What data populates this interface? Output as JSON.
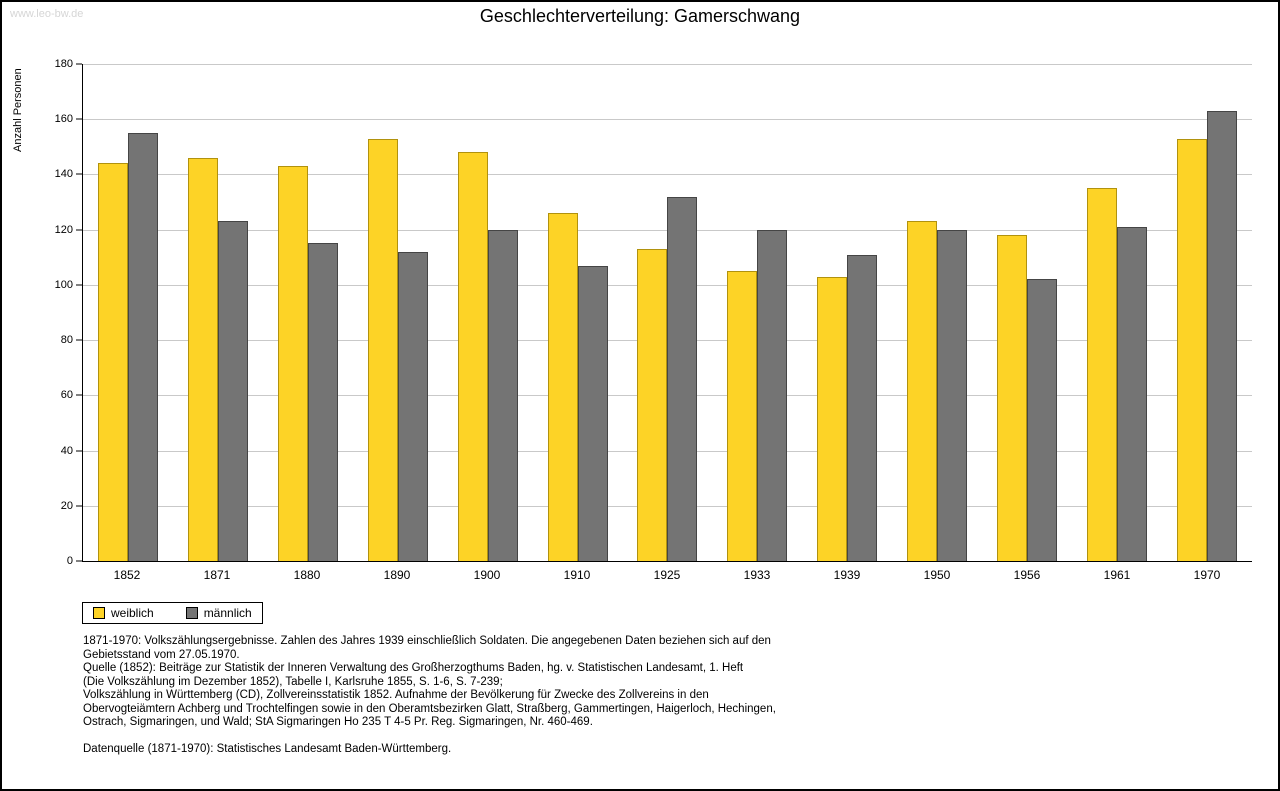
{
  "watermark": "www.leo-bw.de",
  "chart_data": {
    "type": "bar",
    "title": "Geschlechterverteilung: Gamerschwang",
    "xlabel": "",
    "ylabel": "Anzahl Personen",
    "ylim": [
      0,
      180
    ],
    "ytick_step": 20,
    "grid": true,
    "legend_position": "bottom-left",
    "categories": [
      "1852",
      "1871",
      "1880",
      "1890",
      "1900",
      "1910",
      "1925",
      "1933",
      "1939",
      "1950",
      "1956",
      "1961",
      "1970"
    ],
    "series": [
      {
        "name": "weiblich",
        "color": "#fdd326",
        "border": "#b1920e",
        "values": [
          144,
          146,
          143,
          153,
          148,
          126,
          113,
          105,
          103,
          123,
          118,
          135,
          153
        ]
      },
      {
        "name": "männlich",
        "color": "#747474",
        "border": "#454545",
        "values": [
          155,
          123,
          115,
          112,
          120,
          107,
          132,
          120,
          111,
          120,
          102,
          121,
          163
        ]
      }
    ]
  },
  "footnotes": [
    "1871-1970: Volkszählungsergebnisse. Zahlen des Jahres 1939 einschließlich Soldaten. Die angegebenen Daten beziehen sich auf den",
    "Gebietsstand vom 27.05.1970.",
    "Quelle (1852): Beiträge zur Statistik der Inneren Verwaltung des Großherzogthums Baden, hg. v. Statistischen Landesamt, 1. Heft",
    "(Die Volkszählung im Dezember 1852), Tabelle I, Karlsruhe 1855, S. 1-6, S. 7-239;",
    "Volkszählung in Württemberg (CD), Zollvereinsstatistik 1852. Aufnahme der Bevölkerung für Zwecke des Zollvereins in den",
    "Obervogteiämtern Achberg und Trochtelfingen sowie in den Oberamtsbezirken Glatt, Straßberg, Gammertingen, Haigerloch, Hechingen,",
    "Ostrach, Sigmaringen, und Wald; StA Sigmaringen Ho 235 T 4-5 Pr. Reg. Sigmaringen, Nr. 460-469.",
    "",
    "Datenquelle (1871-1970): Statistisches Landesamt Baden-Württemberg."
  ]
}
